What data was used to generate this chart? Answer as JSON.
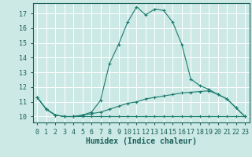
{
  "title": "",
  "xlabel": "Humidex (Indice chaleur)",
  "ylabel": "",
  "background_color": "#cce9e5",
  "grid_color": "#b0d8d4",
  "line_color": "#1a7a6e",
  "x_ticks": [
    0,
    1,
    2,
    3,
    4,
    5,
    6,
    7,
    8,
    9,
    10,
    11,
    12,
    13,
    14,
    15,
    16,
    17,
    18,
    19,
    20,
    21,
    22,
    23
  ],
  "y_ticks": [
    10,
    11,
    12,
    13,
    14,
    15,
    16,
    17
  ],
  "ylim": [
    9.6,
    17.7
  ],
  "xlim": [
    -0.5,
    23.5
  ],
  "series": [
    {
      "x": [
        0,
        1,
        2,
        3,
        4,
        5,
        6,
        7,
        8,
        9,
        10,
        11,
        12,
        13,
        14,
        15,
        16,
        17,
        18,
        19,
        20,
        21,
        22,
        23
      ],
      "y": [
        11.3,
        10.5,
        10.1,
        10.0,
        10.0,
        10.0,
        10.0,
        10.0,
        10.0,
        10.0,
        10.0,
        10.0,
        10.0,
        10.0,
        10.0,
        10.0,
        10.0,
        10.0,
        10.0,
        10.0,
        10.0,
        10.0,
        10.0,
        10.0
      ]
    },
    {
      "x": [
        0,
        1,
        2,
        3,
        4,
        5,
        6,
        7,
        8,
        9,
        10,
        11,
        12,
        13,
        14,
        15,
        16,
        17,
        18,
        19,
        20,
        21,
        22,
        23
      ],
      "y": [
        11.3,
        10.5,
        10.1,
        10.0,
        10.0,
        10.1,
        10.2,
        10.3,
        10.5,
        10.7,
        10.9,
        11.0,
        11.2,
        11.3,
        11.4,
        11.5,
        11.6,
        11.65,
        11.7,
        11.75,
        11.5,
        11.2,
        10.6,
        10.0
      ]
    },
    {
      "x": [
        0,
        1,
        2,
        3,
        4,
        5,
        6,
        7,
        8,
        9,
        10,
        11,
        12,
        13,
        14,
        15,
        16,
        17,
        18,
        19,
        20,
        21,
        22,
        23
      ],
      "y": [
        11.3,
        10.5,
        10.1,
        10.0,
        10.0,
        10.1,
        10.3,
        11.1,
        13.6,
        14.9,
        16.4,
        17.45,
        16.9,
        17.3,
        17.2,
        16.4,
        14.9,
        12.55,
        12.1,
        11.85,
        11.5,
        11.2,
        10.6,
        10.0
      ]
    }
  ],
  "font_color": "#1a5f5a",
  "tick_fontsize": 6,
  "xlabel_fontsize": 7
}
